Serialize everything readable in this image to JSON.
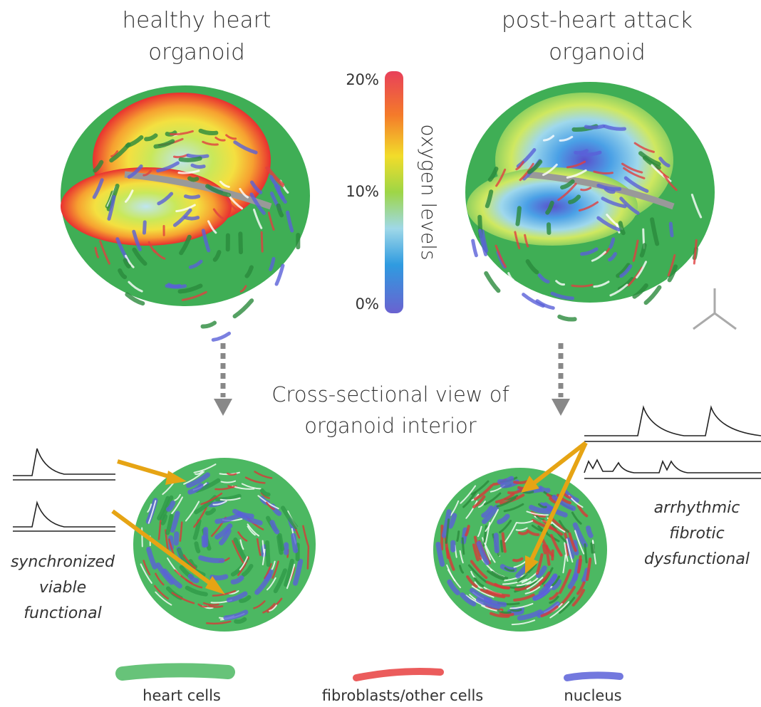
{
  "panels": [
    {
      "title_lines": [
        "healthy heart",
        "organoid"
      ],
      "annotation_lines": [
        "synchronized",
        "viable",
        "functional"
      ]
    },
    {
      "title_lines": [
        "post-heart attack",
        "organoid"
      ],
      "annotation_lines": [
        "arrhythmic",
        "fibrotic",
        "dysfunctional"
      ]
    }
  ],
  "oxygen_scale": {
    "label": "oxygen levels",
    "ticks": [
      "20%",
      "10%",
      "0%"
    ]
  },
  "caption_lines": [
    "Cross-sectional view of",
    "organoid interior"
  ],
  "legend": [
    "heart cells",
    "fibroblasts/other cells",
    "nucleus"
  ]
}
